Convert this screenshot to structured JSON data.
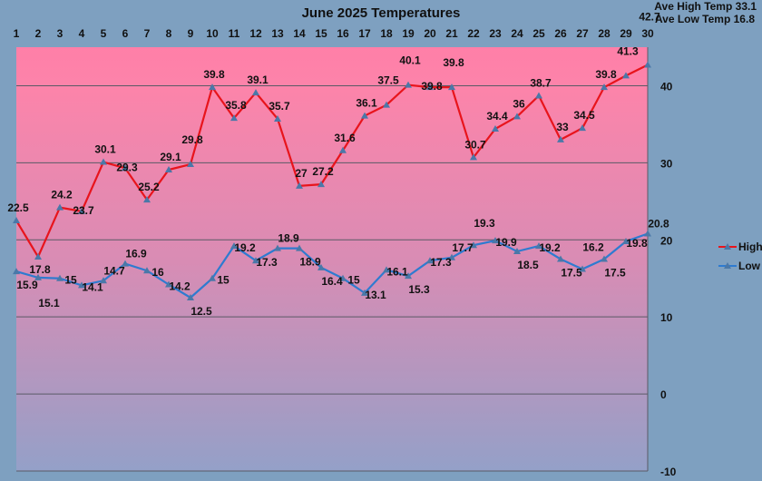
{
  "chart_data": {
    "type": "line",
    "title": "June 2025 Temperatures",
    "x": [
      1,
      2,
      3,
      4,
      5,
      6,
      7,
      8,
      9,
      10,
      11,
      12,
      13,
      14,
      15,
      16,
      17,
      18,
      19,
      20,
      21,
      22,
      23,
      24,
      25,
      26,
      27,
      28,
      29,
      30
    ],
    "series": [
      {
        "name": "High",
        "color": "#e8141c",
        "values": [
          22.5,
          17.8,
          24.2,
          23.7,
          30.1,
          29.3,
          25.2,
          29.1,
          29.8,
          39.8,
          35.8,
          39.1,
          35.7,
          27,
          27.2,
          31.6,
          36.1,
          37.5,
          40.1,
          39.8,
          39.8,
          30.7,
          34.4,
          36,
          38.7,
          33,
          34.5,
          39.8,
          41.3,
          42.7
        ]
      },
      {
        "name": "Low",
        "color": "#2e7bd0",
        "values": [
          15.9,
          15.1,
          15,
          14.1,
          14.7,
          16.9,
          16,
          14.2,
          12.5,
          15,
          19.2,
          17.3,
          18.9,
          18.9,
          16.4,
          15,
          13.1,
          16.1,
          15.3,
          17.3,
          17.7,
          19.3,
          19.9,
          18.5,
          19.2,
          17.5,
          16.2,
          17.5,
          19.8,
          20.8
        ]
      }
    ],
    "ylim": [
      -10,
      45
    ],
    "yticks": [
      -10,
      0,
      10,
      20,
      30,
      40
    ],
    "grid": true,
    "legend": "right",
    "xlabel": "",
    "ylabel": ""
  },
  "summary": {
    "ave_high": "Ave High Temp 33.1",
    "ave_low": "Ave Low Temp 16.8"
  }
}
